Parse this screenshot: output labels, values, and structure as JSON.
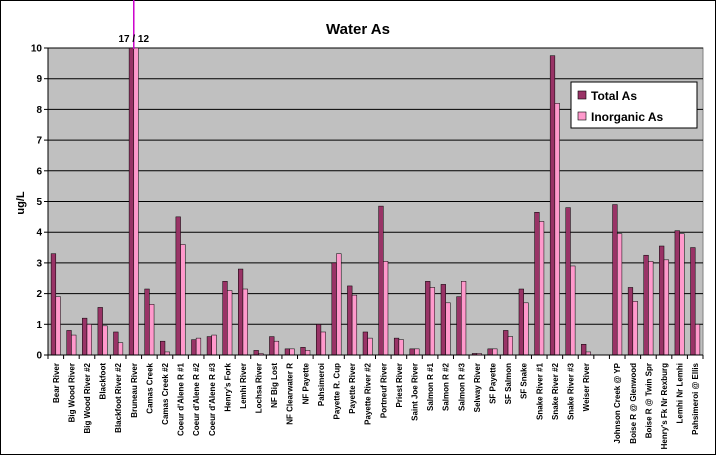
{
  "chart_data": {
    "type": "bar",
    "title": "Water As",
    "ylabel": "ug/L",
    "xlabel": "",
    "ylim": [
      0,
      10
    ],
    "yticks": [
      0,
      1,
      2,
      3,
      4,
      5,
      6,
      7,
      8,
      9,
      10
    ],
    "grid": true,
    "legend_position": "right",
    "annotation": "17 / 12",
    "annotation_category": "Bruneau River",
    "categories": [
      "Bear River",
      "Big Wood River",
      "Big Wood River #2",
      "Blackfoot",
      "Blackfoot River #2",
      "Bruneau River",
      "Camas Creek",
      "Camas Creek #2",
      "Coeur d'Alene R #1",
      "Coeur d'Alene R #2",
      "Coeur d'Alene R #3",
      "Henry's Fork",
      "Lemhi River",
      "Lochsa River",
      "NF Big Lost",
      "NF Clearwater R",
      "NF Payette",
      "Pahsimeroi",
      "Payette R. Cup",
      "Payette River",
      "Payette River #2",
      "Portneuf River",
      "Priest River",
      "Saint Joe River",
      "Salmon R #1",
      "Salmon R #2",
      "Salmon R #3",
      "Selway River",
      "SF Payette",
      "SF Salmon",
      "SF Snake",
      "Snake River #1",
      "Snake River #2",
      "Snake River #3",
      "Weiser River",
      "",
      "Johnson Creek @ YP",
      "Boise R @ Glenwood",
      "Boise R @ Twin Spr",
      "Henry's Fk Nr Rexburg",
      "Lemhi Nr Lemhi",
      "Pahsimeroi @ Ellis"
    ],
    "series": [
      {
        "name": "Total As",
        "color": "#993366",
        "values": [
          3.3,
          0.8,
          1.2,
          1.55,
          0.75,
          10,
          2.15,
          0.45,
          4.5,
          0.5,
          0.6,
          2.4,
          2.8,
          0.15,
          0.6,
          0.2,
          0.25,
          1.0,
          3.0,
          2.25,
          0.75,
          4.85,
          0.55,
          0.2,
          2.4,
          2.3,
          1.9,
          0.05,
          0.2,
          0.8,
          2.15,
          4.65,
          9.75,
          4.8,
          0.35,
          null,
          4.9,
          2.2,
          3.25,
          3.55,
          4.05,
          3.5
        ]
      },
      {
        "name": "Inorganic As",
        "color": "#ff99cc",
        "values": [
          1.9,
          0.65,
          1.0,
          0.95,
          0.4,
          10,
          1.65,
          0.1,
          3.6,
          0.55,
          0.65,
          2.1,
          2.15,
          0.05,
          0.45,
          0.2,
          0.15,
          0.75,
          3.3,
          1.95,
          0.55,
          3.05,
          0.5,
          0.2,
          2.2,
          1.7,
          2.4,
          0.05,
          0.2,
          0.6,
          1.7,
          4.35,
          8.2,
          2.9,
          0.1,
          null,
          3.95,
          1.75,
          3.05,
          3.1,
          3.95,
          1.0
        ]
      }
    ]
  }
}
